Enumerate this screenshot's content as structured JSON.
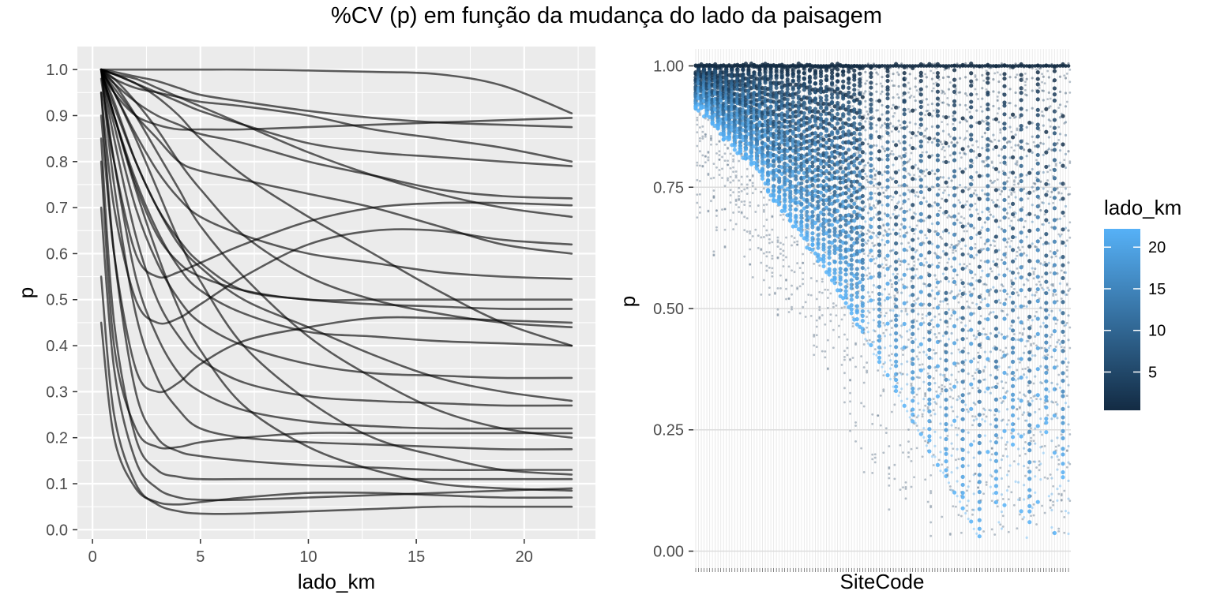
{
  "figure": {
    "title": "%CV (p) em função da mudança do lado da paisagem"
  },
  "chart_data": [
    {
      "type": "line",
      "xlabel": "lado_km",
      "ylabel": "p",
      "xlim": [
        -0.7,
        23.3
      ],
      "ylim": [
        -0.02,
        1.05
      ],
      "x_ticks": [
        0,
        5,
        10,
        15,
        20
      ],
      "y_ticks": [
        0.0,
        0.1,
        0.2,
        0.3,
        0.4,
        0.5,
        0.6,
        0.7,
        0.8,
        0.9,
        1.0
      ],
      "x_tick_labels": [
        "0",
        "5",
        "10",
        "15",
        "20"
      ],
      "y_tick_labels": [
        "0.0",
        "0.1",
        "0.2",
        "0.3",
        "0.4",
        "0.5",
        "0.6",
        "0.7",
        "0.8",
        "0.9",
        "1.0"
      ],
      "grid": true,
      "panel_background": "#ebebeb",
      "line_color": "#000000",
      "series": [
        {
          "x": [
            0.4,
            1,
            2,
            3,
            4,
            5,
            7,
            10,
            13,
            16,
            19,
            22.2
          ],
          "values": [
            1.0,
            1.0,
            1.0,
            1.0,
            1.0,
            1.0,
            1.0,
            0.998,
            0.995,
            0.99,
            0.965,
            0.905
          ]
        },
        {
          "x": [
            0.4,
            1,
            2,
            3,
            4,
            5,
            7,
            10,
            13,
            16,
            19,
            22.2
          ],
          "values": [
            1.0,
            0.995,
            0.985,
            0.975,
            0.96,
            0.945,
            0.93,
            0.91,
            0.895,
            0.885,
            0.88,
            0.875
          ]
        },
        {
          "x": [
            0.4,
            1,
            2,
            3,
            4,
            5,
            7,
            10,
            13,
            16,
            19,
            22.2
          ],
          "values": [
            1.0,
            0.95,
            0.9,
            0.88,
            0.87,
            0.87,
            0.87,
            0.875,
            0.88,
            0.885,
            0.89,
            0.895
          ]
        },
        {
          "x": [
            0.4,
            1,
            2,
            3,
            4,
            5,
            7,
            10,
            13,
            16,
            19,
            22.2
          ],
          "values": [
            1.0,
            0.98,
            0.96,
            0.95,
            0.94,
            0.93,
            0.92,
            0.9,
            0.87,
            0.85,
            0.83,
            0.8
          ]
        },
        {
          "x": [
            0.4,
            1,
            2,
            3,
            4,
            5,
            7,
            10,
            13,
            16,
            19,
            22.2
          ],
          "values": [
            1.0,
            0.97,
            0.93,
            0.9,
            0.88,
            0.86,
            0.84,
            0.8,
            0.77,
            0.74,
            0.725,
            0.72
          ]
        },
        {
          "x": [
            0.4,
            1,
            2,
            3,
            4,
            5,
            7,
            10,
            13,
            16,
            19,
            22.2
          ],
          "values": [
            1.0,
            0.96,
            0.9,
            0.85,
            0.8,
            0.78,
            0.76,
            0.73,
            0.7,
            0.66,
            0.62,
            0.6
          ]
        },
        {
          "x": [
            0.4,
            1,
            2,
            3,
            4,
            5,
            7,
            10,
            13,
            16,
            19,
            22.2
          ],
          "values": [
            1.0,
            0.95,
            0.86,
            0.78,
            0.72,
            0.68,
            0.64,
            0.6,
            0.58,
            0.56,
            0.55,
            0.545
          ]
        },
        {
          "x": [
            0.4,
            1,
            2,
            3,
            4,
            5,
            7,
            10,
            13,
            16,
            19,
            22.2
          ],
          "values": [
            1.0,
            0.92,
            0.8,
            0.7,
            0.63,
            0.58,
            0.52,
            0.5,
            0.49,
            0.485,
            0.48,
            0.48
          ]
        },
        {
          "x": [
            0.4,
            1,
            2,
            3,
            4,
            5,
            7,
            10,
            13,
            16,
            19,
            22.2
          ],
          "values": [
            1.0,
            0.9,
            0.76,
            0.65,
            0.57,
            0.52,
            0.47,
            0.43,
            0.42,
            0.41,
            0.405,
            0.4
          ]
        },
        {
          "x": [
            0.4,
            1,
            2,
            3,
            4,
            5,
            7,
            10,
            13,
            16,
            19,
            22.2
          ],
          "values": [
            1.0,
            0.88,
            0.7,
            0.58,
            0.5,
            0.45,
            0.4,
            0.36,
            0.34,
            0.335,
            0.33,
            0.33
          ]
        },
        {
          "x": [
            0.4,
            1,
            2,
            3,
            4,
            5,
            7,
            10,
            13,
            16,
            19,
            22.2
          ],
          "values": [
            1.0,
            0.85,
            0.64,
            0.5,
            0.42,
            0.37,
            0.32,
            0.29,
            0.28,
            0.275,
            0.27,
            0.27
          ]
        },
        {
          "x": [
            0.4,
            1,
            2,
            3,
            4,
            5,
            7,
            10,
            13,
            16,
            19,
            22.2
          ],
          "values": [
            1.0,
            0.8,
            0.55,
            0.42,
            0.34,
            0.3,
            0.26,
            0.235,
            0.225,
            0.22,
            0.22,
            0.22
          ]
        },
        {
          "x": [
            0.4,
            1,
            2,
            3,
            4,
            5,
            7,
            10,
            13,
            16,
            19,
            22.2
          ],
          "values": [
            1.0,
            0.75,
            0.47,
            0.33,
            0.26,
            0.22,
            0.2,
            0.19,
            0.185,
            0.18,
            0.175,
            0.175
          ]
        },
        {
          "x": [
            0.4,
            1,
            2,
            3,
            4,
            5,
            7,
            10,
            13,
            16,
            19,
            22.2
          ],
          "values": [
            0.95,
            0.6,
            0.3,
            0.2,
            0.17,
            0.16,
            0.15,
            0.14,
            0.135,
            0.13,
            0.13,
            0.13
          ]
        },
        {
          "x": [
            0.4,
            1,
            2,
            3,
            4,
            5,
            7,
            10,
            13,
            16,
            19,
            22.2
          ],
          "values": [
            0.85,
            0.45,
            0.2,
            0.13,
            0.115,
            0.11,
            0.11,
            0.11,
            0.11,
            0.11,
            0.11,
            0.11
          ]
        },
        {
          "x": [
            0.4,
            1,
            2,
            3,
            4,
            5,
            7,
            10,
            13,
            16,
            19,
            22.2
          ],
          "values": [
            0.7,
            0.35,
            0.15,
            0.09,
            0.07,
            0.065,
            0.065,
            0.07,
            0.075,
            0.08,
            0.085,
            0.09
          ]
        },
        {
          "x": [
            0.4,
            1,
            2,
            3,
            4,
            5,
            7,
            10,
            13,
            16,
            19,
            22.2
          ],
          "values": [
            0.55,
            0.25,
            0.1,
            0.055,
            0.04,
            0.035,
            0.035,
            0.04,
            0.045,
            0.05,
            0.05,
            0.05
          ]
        },
        {
          "x": [
            0.4,
            1,
            2,
            3,
            4,
            5,
            7,
            10,
            13,
            16,
            19,
            22.2
          ],
          "values": [
            0.45,
            0.2,
            0.09,
            0.06,
            0.055,
            0.06,
            0.07,
            0.08,
            0.08,
            0.075,
            0.07,
            0.07
          ]
        },
        {
          "x": [
            0.4,
            1,
            2,
            3,
            4,
            5,
            7,
            10,
            13,
            16,
            19,
            22.2
          ],
          "values": [
            1.0,
            0.99,
            0.97,
            0.94,
            0.9,
            0.85,
            0.77,
            0.68,
            0.6,
            0.52,
            0.45,
            0.4
          ]
        },
        {
          "x": [
            0.4,
            1,
            2,
            3,
            4,
            5,
            7,
            10,
            13,
            16,
            19,
            22.2
          ],
          "values": [
            1.0,
            0.97,
            0.9,
            0.82,
            0.74,
            0.66,
            0.55,
            0.42,
            0.33,
            0.26,
            0.22,
            0.2
          ]
        },
        {
          "x": [
            0.4,
            1,
            2,
            3,
            4,
            5,
            7,
            10,
            13,
            16,
            19,
            22.2
          ],
          "values": [
            1.0,
            0.95,
            0.85,
            0.74,
            0.63,
            0.54,
            0.4,
            0.28,
            0.2,
            0.16,
            0.13,
            0.12
          ]
        },
        {
          "x": [
            0.4,
            1,
            2,
            3,
            4,
            5,
            7,
            10,
            13,
            16,
            19,
            22.2
          ],
          "values": [
            1.0,
            0.9,
            0.74,
            0.6,
            0.48,
            0.39,
            0.27,
            0.18,
            0.13,
            0.1,
            0.09,
            0.085
          ]
        },
        {
          "x": [
            0.4,
            1,
            2,
            3,
            4,
            5,
            7,
            10,
            13,
            16,
            19,
            22.2
          ],
          "values": [
            1.0,
            0.99,
            0.98,
            0.96,
            0.94,
            0.92,
            0.88,
            0.82,
            0.77,
            0.73,
            0.7,
            0.68
          ]
        },
        {
          "x": [
            0.4,
            1,
            2,
            3,
            4,
            5,
            7,
            10,
            13,
            16,
            19,
            22.2
          ],
          "values": [
            0.98,
            0.8,
            0.6,
            0.55,
            0.56,
            0.58,
            0.62,
            0.67,
            0.7,
            0.71,
            0.71,
            0.705
          ]
        },
        {
          "x": [
            0.4,
            1,
            2,
            3,
            4,
            5,
            7,
            10,
            13,
            16,
            19,
            22.2
          ],
          "values": [
            0.95,
            0.7,
            0.5,
            0.45,
            0.46,
            0.49,
            0.55,
            0.62,
            0.65,
            0.65,
            0.63,
            0.62
          ]
        },
        {
          "x": [
            0.4,
            1,
            2,
            3,
            4,
            5,
            7,
            10,
            13,
            16,
            19,
            22.2
          ],
          "values": [
            0.9,
            0.6,
            0.35,
            0.3,
            0.32,
            0.36,
            0.41,
            0.44,
            0.46,
            0.46,
            0.455,
            0.45
          ]
        },
        {
          "x": [
            0.4,
            1,
            2,
            3,
            4,
            5,
            7,
            10,
            13,
            16,
            19,
            22.2
          ],
          "values": [
            1.0,
            0.99,
            0.97,
            0.95,
            0.93,
            0.91,
            0.88,
            0.84,
            0.82,
            0.81,
            0.8,
            0.79
          ]
        },
        {
          "x": [
            0.4,
            1,
            2,
            3,
            4,
            5,
            7,
            10,
            13,
            16,
            19,
            22.2
          ],
          "values": [
            1.0,
            0.93,
            0.8,
            0.7,
            0.62,
            0.57,
            0.5,
            0.44,
            0.38,
            0.33,
            0.3,
            0.28
          ]
        },
        {
          "x": [
            0.4,
            1,
            2,
            3,
            4,
            5,
            7,
            10,
            13,
            16,
            19,
            22.2
          ],
          "values": [
            1.0,
            0.9,
            0.75,
            0.64,
            0.58,
            0.55,
            0.52,
            0.5,
            0.5,
            0.5,
            0.5,
            0.5
          ]
        },
        {
          "x": [
            0.4,
            1,
            2,
            3,
            4,
            5,
            7,
            10,
            13,
            16,
            19,
            22.2
          ],
          "values": [
            0.8,
            0.4,
            0.22,
            0.18,
            0.18,
            0.19,
            0.2,
            0.21,
            0.21,
            0.21,
            0.21,
            0.21
          ]
        },
        {
          "x": [
            0.4,
            1,
            2,
            3,
            4,
            5,
            7,
            10,
            13,
            16,
            19,
            22.2
          ],
          "values": [
            1.0,
            0.98,
            0.93,
            0.87,
            0.8,
            0.74,
            0.64,
            0.55,
            0.5,
            0.47,
            0.45,
            0.44
          ]
        }
      ]
    },
    {
      "type": "scatter",
      "xlabel": "SiteCode",
      "ylabel": "p",
      "ylim": [
        -0.035,
        1.035
      ],
      "y_ticks": [
        0.0,
        0.25,
        0.5,
        0.75,
        1.0
      ],
      "y_tick_labels": [
        "0.00",
        "0.25",
        "0.50",
        "0.75",
        "1.00"
      ],
      "grid": true,
      "x_tick_labels_shown": false,
      "panel_background": "#ffffff",
      "gridline_color": "#e8e8e8",
      "color_scale": {
        "low": "#132b43",
        "high": "#56b1f7",
        "domain": [
          0.4,
          22.2
        ]
      },
      "legend": {
        "title": "lado_km",
        "ticks": [
          5,
          10,
          15,
          20
        ],
        "tick_labels": [
          "5",
          "10",
          "15",
          "20"
        ],
        "position": "right"
      },
      "site_count": 135,
      "min_p_by_site": [
        0.91,
        0.91,
        0.91,
        0.9,
        0.9,
        0.89,
        0.88,
        0.88,
        0.87,
        0.86,
        0.85,
        0.85,
        0.85,
        0.84,
        0.83,
        0.82,
        0.82,
        0.81,
        0.81,
        0.81,
        0.8,
        0.8,
        0.79,
        0.78,
        0.77,
        0.76,
        0.74,
        0.73,
        0.72,
        0.72,
        0.71,
        0.7,
        0.7,
        0.69,
        0.68,
        0.67,
        0.67,
        0.66,
        0.65,
        0.64,
        0.63,
        0.62,
        0.62,
        0.61,
        0.6,
        0.6,
        0.59,
        0.58,
        0.57,
        0.56,
        0.55,
        0.54,
        0.53,
        0.52,
        0.51,
        0.5,
        0.49,
        0.48,
        0.47,
        0.46,
        0.45,
        0.44,
        0.43,
        0.42,
        0.41,
        0.4,
        0.39,
        0.38,
        0.37,
        0.36,
        0.35,
        0.34,
        0.33,
        0.32,
        0.31,
        0.3,
        0.29,
        0.28,
        0.27,
        0.26,
        0.25,
        0.24,
        0.23,
        0.22,
        0.21,
        0.2,
        0.19,
        0.18,
        0.17,
        0.16,
        0.15,
        0.14,
        0.13,
        0.12,
        0.11,
        0.1,
        0.09,
        0.08,
        0.07,
        0.06,
        0.05,
        0.04,
        0.03,
        0.27,
        0.24,
        0.2,
        0.13,
        0.12,
        0.1,
        0.06,
        0.05,
        0.09,
        0.13,
        0.18,
        0.22,
        0.14,
        0.11,
        0.08,
        0.07,
        0.03,
        0.06,
        0.09,
        0.12,
        0.1,
        0.15,
        0.2,
        0.25,
        0.11,
        0.05,
        0.04,
        0.1,
        0.13,
        0.15,
        0.08,
        0.04
      ]
    }
  ]
}
